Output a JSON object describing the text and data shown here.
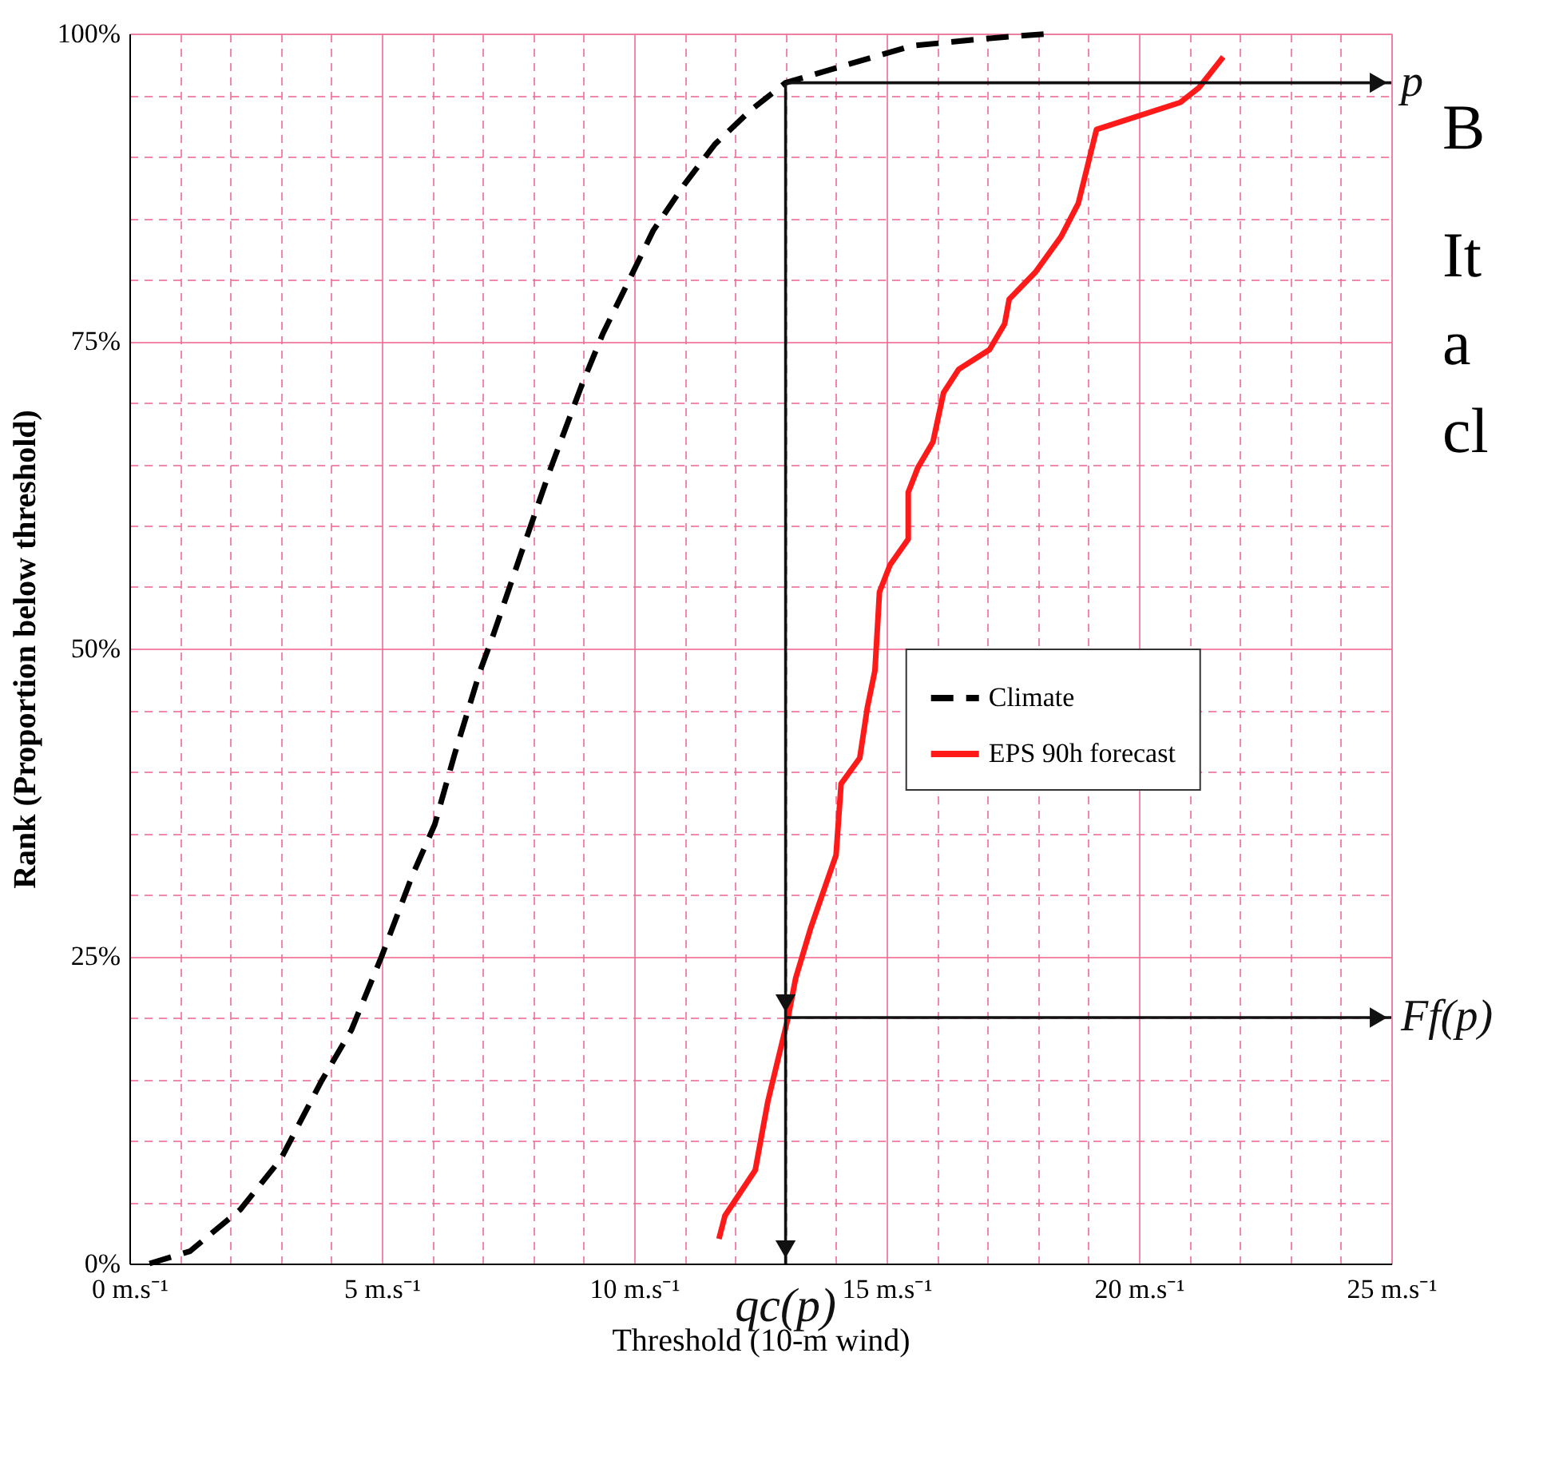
{
  "chart_data": {
    "type": "line",
    "xlabel": "Threshold (10-m wind)",
    "ylabel": "Rank (Proportion below threshold)",
    "xlim": [
      0,
      25
    ],
    "ylim": [
      0,
      100
    ],
    "xticks": [
      {
        "value": 0,
        "label": "0 m.s⁻¹"
      },
      {
        "value": 1,
        "label": null
      },
      {
        "value": 2,
        "label": null
      },
      {
        "value": 3,
        "label": null
      },
      {
        "value": 4,
        "label": null
      },
      {
        "value": 5,
        "label": "5 m.s⁻¹"
      },
      {
        "value": 6,
        "label": null
      },
      {
        "value": 7,
        "label": null
      },
      {
        "value": 8,
        "label": null
      },
      {
        "value": 9,
        "label": null
      },
      {
        "value": 10,
        "label": "10 m.s⁻¹"
      },
      {
        "value": 11,
        "label": null
      },
      {
        "value": 12,
        "label": null
      },
      {
        "value": 13,
        "label": null
      },
      {
        "value": 14,
        "label": null
      },
      {
        "value": 15,
        "label": "15 m.s⁻¹"
      },
      {
        "value": 16,
        "label": null
      },
      {
        "value": 17,
        "label": null
      },
      {
        "value": 18,
        "label": null
      },
      {
        "value": 19,
        "label": null
      },
      {
        "value": 20,
        "label": "20 m.s⁻¹"
      },
      {
        "value": 21,
        "label": null
      },
      {
        "value": 22,
        "label": null
      },
      {
        "value": 23,
        "label": null
      },
      {
        "value": 24,
        "label": null
      },
      {
        "value": 25,
        "label": "25 m.s⁻¹"
      }
    ],
    "yticks": [
      {
        "value": 0,
        "label": "0%"
      },
      {
        "value": 5,
        "label": null
      },
      {
        "value": 10,
        "label": null
      },
      {
        "value": 15,
        "label": null
      },
      {
        "value": 20,
        "label": null
      },
      {
        "value": 25,
        "label": "25%"
      },
      {
        "value": 30,
        "label": null
      },
      {
        "value": 35,
        "label": null
      },
      {
        "value": 40,
        "label": null
      },
      {
        "value": 45,
        "label": null
      },
      {
        "value": 50,
        "label": "50%"
      },
      {
        "value": 55,
        "label": null
      },
      {
        "value": 60,
        "label": null
      },
      {
        "value": 65,
        "label": null
      },
      {
        "value": 70,
        "label": null
      },
      {
        "value": 75,
        "label": "75%"
      },
      {
        "value": 80,
        "label": null
      },
      {
        "value": 85,
        "label": null
      },
      {
        "value": 90,
        "label": null
      },
      {
        "value": 95,
        "label": null
      },
      {
        "value": 100,
        "label": "100%"
      }
    ],
    "grid": true,
    "legend": "right",
    "marker": "none",
    "series": [
      {
        "name": "Climate",
        "color": "#000000",
        "line_style": "dashed",
        "x": [
          0.4,
          1.2,
          2.2,
          3.0,
          3.8,
          4.4,
          5.0,
          5.6,
          6.05,
          6.45,
          6.95,
          7.2,
          7.75,
          8.35,
          8.96,
          9.38,
          9.87,
          10.38,
          10.99,
          11.6,
          12.29,
          13.0,
          14.0,
          15.5,
          17.0,
          18.25
        ],
        "values": [
          0,
          1.0,
          4.4,
          8.5,
          14.8,
          19,
          25,
          31.5,
          35.7,
          41.5,
          48.2,
          51,
          57.6,
          64.7,
          71.4,
          75.6,
          79.7,
          84,
          87.7,
          91,
          93.7,
          96,
          97.2,
          99,
          99.6,
          100
        ]
      },
      {
        "name": "EPS 90h forecast",
        "color": "#ff1a1a",
        "line_style": "solid",
        "x": [
          11.68,
          11.8,
          12.4,
          12.65,
          13.05,
          13.2,
          13.5,
          14.0,
          14.1,
          14.47,
          14.62,
          14.77,
          14.83,
          14.86,
          15.07,
          15.43,
          15.43,
          15.62,
          15.92,
          16.13,
          16.43,
          17.04,
          17.34,
          17.43,
          17.95,
          18.46,
          18.8,
          19.16,
          20.82,
          21.19,
          21.67
        ],
        "values": [
          2.0,
          3.9,
          7.6,
          13.2,
          20,
          23.2,
          27.3,
          33.2,
          39,
          41.1,
          45.2,
          48.2,
          52.4,
          54.6,
          56.8,
          58.9,
          62.7,
          64.7,
          66.8,
          70.8,
          72.7,
          74.3,
          76.4,
          78.4,
          80.6,
          83.5,
          86.2,
          92.2,
          94.4,
          95.6,
          98.1
        ]
      },
      {
        "type": "line",
        "color": "#111111",
        "line_style": "solid",
        "x": [
          13,
          25
        ],
        "values": [
          96,
          96
        ]
      },
      {
        "type": "line",
        "color": "#111111",
        "line_style": "solid",
        "x": [
          13,
          25
        ],
        "values": [
          20,
          20
        ]
      },
      {
        "type": "line",
        "color": "#111111",
        "line_style": "solid",
        "x": [
          13,
          13,
          13
        ],
        "values": [
          96,
          20,
          0
        ]
      }
    ],
    "annotations": [
      "p",
      "Ff(p)",
      "qc(p)",
      "B",
      "It",
      "a",
      "cl"
    ]
  }
}
